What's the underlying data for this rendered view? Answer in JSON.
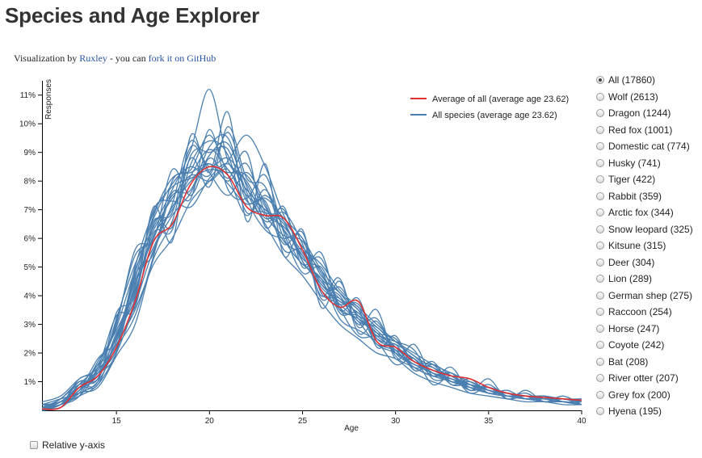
{
  "page": {
    "title": "Species and Age Explorer",
    "byline_prefix": "Visualization by ",
    "byline_author": "Ruxley",
    "byline_middle": " - you can ",
    "byline_link": "fork it on GitHub"
  },
  "controls": {
    "relative_label": "Relative y-axis",
    "species": [
      {
        "label": "All (17860)",
        "selected": true
      },
      {
        "label": "Wolf (2613)",
        "selected": false
      },
      {
        "label": "Dragon (1244)",
        "selected": false
      },
      {
        "label": "Red fox (1001)",
        "selected": false
      },
      {
        "label": "Domestic cat (774)",
        "selected": false
      },
      {
        "label": "Husky (741)",
        "selected": false
      },
      {
        "label": "Tiger (422)",
        "selected": false
      },
      {
        "label": "Rabbit (359)",
        "selected": false
      },
      {
        "label": "Arctic fox (344)",
        "selected": false
      },
      {
        "label": "Snow leopard (325)",
        "selected": false
      },
      {
        "label": "Kitsune (315)",
        "selected": false
      },
      {
        "label": "Deer (304)",
        "selected": false
      },
      {
        "label": "Lion (289)",
        "selected": false
      },
      {
        "label": "German shep (275)",
        "selected": false
      },
      {
        "label": "Raccoon (254)",
        "selected": false
      },
      {
        "label": "Horse (247)",
        "selected": false
      },
      {
        "label": "Coyote (242)",
        "selected": false
      },
      {
        "label": "Bat (208)",
        "selected": false
      },
      {
        "label": "River otter (207)",
        "selected": false
      },
      {
        "label": "Grey fox (200)",
        "selected": false
      },
      {
        "label": "Hyena (195)",
        "selected": false
      }
    ]
  },
  "chart_data": {
    "type": "line",
    "xlabel": "Age",
    "ylabel": "Responses",
    "xlim": [
      11,
      40
    ],
    "ylim": [
      0,
      11.5
    ],
    "x_ticks": [
      15,
      20,
      25,
      30,
      35,
      40
    ],
    "y_ticks": [
      1,
      2,
      3,
      4,
      5,
      6,
      7,
      8,
      9,
      10,
      11
    ],
    "y_tick_suffix": "%",
    "grid": false,
    "legend_position": "top-right",
    "colors": {
      "average": "#e03030",
      "species": "#4a7fb0"
    },
    "legend": [
      {
        "label": "Average of all (average age 23.62)",
        "color": "#e03030"
      },
      {
        "label": "All species (average age 23.62)",
        "color": "#4a7fb0"
      }
    ],
    "x": [
      11,
      12,
      13,
      14,
      15,
      16,
      17,
      18,
      19,
      20,
      21,
      22,
      23,
      24,
      25,
      26,
      27,
      28,
      29,
      30,
      31,
      32,
      33,
      34,
      35,
      36,
      37,
      38,
      39,
      40
    ],
    "average": [
      0.05,
      0.1,
      0.8,
      1.2,
      2.2,
      3.8,
      5.9,
      6.5,
      7.9,
      8.5,
      8.2,
      7.1,
      6.8,
      6.7,
      5.6,
      4.2,
      3.6,
      3.8,
      2.4,
      2.2,
      1.7,
      1.4,
      1.2,
      1.1,
      0.8,
      0.6,
      0.5,
      0.45,
      0.4,
      0.35
    ],
    "series": [
      {
        "values": [
          0.1,
          0.3,
          0.8,
          1.3,
          2.6,
          4.2,
          6.1,
          7.0,
          8.2,
          9.1,
          8.4,
          7.5,
          7.0,
          6.3,
          5.4,
          4.3,
          3.8,
          3.4,
          2.7,
          2.2,
          1.7,
          1.4,
          1.1,
          0.9,
          0.8,
          0.6,
          0.5,
          0.5,
          0.4,
          0.4
        ]
      },
      {
        "values": [
          0.1,
          0.4,
          1.0,
          1.1,
          3.2,
          5.1,
          6.4,
          7.7,
          9.1,
          11.2,
          8.7,
          8.0,
          6.8,
          6.1,
          5.9,
          4.7,
          4.1,
          3.5,
          2.9,
          2.4,
          2.0,
          1.6,
          1.3,
          1.0,
          0.7,
          0.5,
          0.4,
          0.3,
          0.3,
          0.2
        ]
      },
      {
        "values": [
          0.0,
          0.2,
          0.5,
          0.9,
          2.0,
          3.7,
          5.6,
          6.8,
          7.6,
          8.9,
          9.3,
          7.6,
          6.5,
          5.4,
          4.7,
          3.8,
          3.0,
          2.5,
          2.0,
          1.8,
          1.3,
          1.0,
          0.8,
          0.6,
          0.5,
          0.4,
          0.3,
          0.3,
          0.2,
          0.2
        ]
      },
      {
        "values": [
          0.2,
          0.3,
          0.8,
          1.4,
          2.4,
          4.6,
          6.8,
          8.1,
          8.3,
          8.6,
          7.9,
          7.2,
          7.4,
          6.7,
          6.0,
          4.9,
          4.1,
          3.3,
          2.6,
          2.1,
          1.5,
          1.2,
          1.0,
          0.8,
          0.6,
          0.5,
          0.5,
          0.4,
          0.3,
          0.3
        ]
      },
      {
        "values": [
          0.1,
          0.2,
          0.7,
          1.2,
          2.3,
          3.5,
          5.1,
          6.0,
          7.3,
          8.0,
          8.7,
          9.6,
          8.5,
          6.8,
          5.7,
          5.1,
          4.2,
          3.6,
          3.0,
          2.4,
          1.9,
          1.5,
          1.2,
          0.9,
          0.7,
          0.6,
          0.5,
          0.4,
          0.4,
          0.3
        ]
      },
      {
        "values": [
          0.3,
          0.5,
          1.1,
          1.5,
          2.9,
          4.9,
          6.3,
          7.4,
          8.2,
          8.0,
          8.4,
          7.1,
          6.9,
          6.5,
          5.2,
          4.4,
          3.7,
          3.1,
          2.3,
          2.0,
          1.6,
          1.3,
          1.0,
          0.8,
          0.6,
          0.5,
          0.4,
          0.4,
          0.3,
          0.3
        ]
      },
      {
        "values": [
          0.0,
          0.4,
          0.9,
          1.0,
          3.4,
          4.0,
          7.1,
          5.9,
          9.6,
          8.3,
          10.4,
          6.6,
          8.6,
          5.4,
          6.3,
          3.6,
          4.5,
          2.9,
          3.5,
          1.8,
          2.3,
          1.2,
          1.5,
          0.7,
          1.1,
          0.4,
          0.7,
          0.3,
          0.5,
          0.2
        ]
      },
      {
        "values": [
          0.0,
          0.1,
          0.6,
          0.8,
          1.9,
          3.0,
          5.3,
          6.6,
          8.8,
          7.8,
          9.9,
          8.1,
          7.8,
          6.0,
          5.1,
          4.6,
          3.2,
          2.8,
          2.4,
          1.6,
          1.8,
          0.9,
          1.2,
          0.6,
          0.8,
          0.4,
          0.5,
          0.3,
          0.3,
          0.2
        ]
      },
      {
        "values": [
          0.2,
          0.2,
          0.9,
          1.6,
          3.0,
          5.6,
          6.0,
          8.4,
          7.5,
          8.8,
          8.1,
          9.0,
          6.4,
          7.1,
          5.0,
          5.5,
          3.5,
          3.9,
          2.2,
          2.6,
          1.4,
          1.7,
          0.9,
          1.1,
          0.6,
          0.7,
          0.4,
          0.5,
          0.3,
          0.3
        ]
      },
      {
        "values": [
          0.1,
          0.3,
          0.5,
          1.3,
          2.1,
          4.4,
          5.7,
          7.2,
          9.4,
          8.3,
          7.5,
          8.3,
          7.2,
          5.8,
          6.2,
          4.1,
          3.9,
          3.1,
          2.9,
          2.2,
          1.6,
          1.5,
          1.0,
          0.9,
          0.7,
          0.6,
          0.4,
          0.4,
          0.3,
          0.3
        ]
      },
      {
        "values": [
          0.1,
          0.2,
          1.0,
          1.1,
          2.7,
          3.9,
          6.6,
          6.4,
          8.6,
          9.4,
          8.9,
          6.9,
          7.5,
          6.6,
          5.3,
          4.9,
          3.4,
          3.4,
          2.5,
          2.3,
          1.9,
          1.3,
          1.1,
          0.8,
          0.6,
          0.5,
          0.5,
          0.4,
          0.3,
          0.3
        ]
      },
      {
        "values": [
          0.0,
          0.3,
          0.7,
          1.8,
          2.5,
          4.8,
          6.7,
          7.9,
          8.5,
          8.2,
          9.7,
          7.8,
          6.6,
          6.9,
          5.8,
          4.0,
          4.6,
          2.7,
          3.1,
          1.9,
          1.5,
          1.2,
          1.3,
          0.7,
          0.9,
          0.5,
          0.6,
          0.3,
          0.4,
          0.2
        ]
      },
      {
        "values": [
          0.2,
          0.4,
          0.6,
          1.0,
          2.2,
          3.3,
          5.4,
          7.6,
          7.4,
          9.8,
          7.7,
          7.4,
          8.2,
          6.2,
          4.8,
          5.0,
          3.6,
          3.2,
          2.7,
          2.5,
          1.7,
          1.6,
          1.0,
          1.0,
          0.7,
          0.6,
          0.4,
          0.5,
          0.3,
          0.3
        ]
      },
      {
        "values": [
          0.1,
          0.3,
          0.8,
          1.4,
          3.1,
          5.4,
          5.9,
          7.1,
          8.0,
          8.6,
          8.0,
          8.6,
          6.9,
          6.4,
          5.5,
          4.5,
          3.8,
          3.6,
          2.4,
          2.1,
          1.8,
          1.3,
          1.2,
          0.8,
          0.8,
          0.5,
          0.5,
          0.4,
          0.4,
          0.3
        ]
      },
      {
        "values": [
          0.0,
          0.2,
          0.9,
          1.2,
          2.4,
          4.1,
          6.2,
          6.3,
          8.9,
          9.0,
          9.1,
          7.3,
          7.3,
          5.6,
          5.6,
          4.4,
          4.0,
          3.0,
          3.2,
          2.0,
          1.6,
          1.4,
          1.1,
          0.9,
          0.6,
          0.6,
          0.4,
          0.4,
          0.3,
          0.2
        ]
      },
      {
        "values": [
          0.1,
          0.3,
          0.6,
          1.7,
          2.8,
          4.3,
          7.0,
          7.3,
          7.1,
          8.1,
          8.6,
          7.7,
          7.0,
          6.6,
          5.7,
          4.8,
          3.5,
          3.3,
          2.8,
          2.1,
          1.5,
          1.5,
          0.9,
          0.9,
          0.7,
          0.5,
          0.5,
          0.4,
          0.3,
          0.3
        ]
      },
      {
        "values": [
          0.2,
          0.2,
          1.1,
          1.3,
          2.0,
          4.7,
          5.5,
          8.0,
          8.4,
          9.6,
          8.2,
          6.8,
          7.7,
          6.3,
          5.1,
          5.3,
          3.6,
          2.6,
          2.6,
          2.4,
          2.1,
          1.1,
          1.1,
          0.7,
          0.8,
          0.6,
          0.5,
          0.3,
          0.4,
          0.3
        ]
      },
      {
        "values": [
          0.1,
          0.1,
          0.7,
          1.5,
          3.3,
          3.6,
          6.5,
          6.9,
          9.2,
          8.5,
          8.8,
          7.9,
          6.7,
          7.0,
          5.2,
          4.6,
          3.9,
          3.5,
          2.3,
          2.3,
          1.4,
          1.6,
          1.2,
          0.8,
          0.6,
          0.5,
          0.4,
          0.5,
          0.3,
          0.2
        ]
      },
      {
        "values": [
          0.0,
          0.3,
          0.8,
          0.9,
          2.6,
          4.5,
          6.0,
          7.5,
          7.7,
          9.2,
          9.5,
          7.4,
          6.3,
          6.0,
          6.0,
          3.9,
          4.3,
          3.2,
          2.7,
          2.0,
          1.7,
          1.3,
          1.0,
          1.0,
          0.7,
          0.6,
          0.5,
          0.4,
          0.4,
          0.3
        ]
      },
      {
        "values": [
          0.1,
          0.2,
          0.5,
          1.6,
          2.2,
          5.0,
          6.9,
          7.8,
          8.1,
          8.4,
          8.3,
          8.2,
          7.1,
          5.9,
          5.4,
          4.2,
          3.7,
          3.7,
          2.5,
          2.2,
          1.8,
          1.2,
          1.3,
          0.9,
          0.6,
          0.6,
          0.4,
          0.4,
          0.3,
          0.3
        ]
      }
    ]
  }
}
